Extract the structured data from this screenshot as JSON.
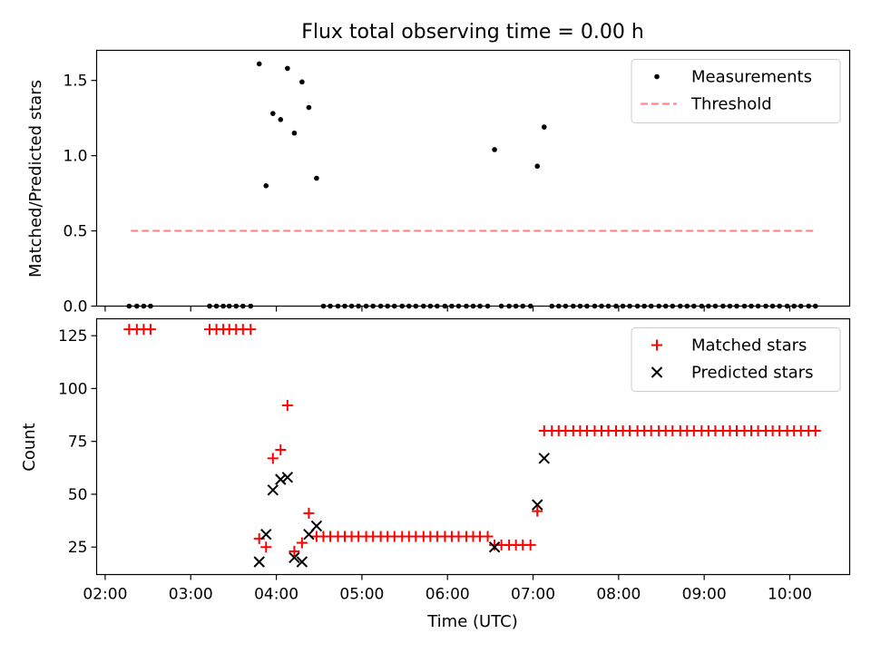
{
  "chart_data": [
    {
      "type": "scatter",
      "title": "Flux total observing time = 0.00 h",
      "xlabel": "",
      "ylabel": "Matched/Predicted stars",
      "xlim": [
        1.9,
        10.7
      ],
      "ylim": [
        0,
        1.7
      ],
      "yticks": [
        0.0,
        0.5,
        1.0,
        1.5
      ],
      "yticklabels": [
        "0.0",
        "0.5",
        "1.0",
        "1.5"
      ],
      "legend_position": "top-right",
      "series": [
        {
          "name": "Measurements",
          "marker": "dot",
          "color": "#000000",
          "points": [
            [
              2.28,
              0
            ],
            [
              2.37,
              0
            ],
            [
              2.45,
              0
            ],
            [
              2.53,
              0
            ],
            [
              3.22,
              0
            ],
            [
              3.3,
              0
            ],
            [
              3.38,
              0
            ],
            [
              3.45,
              0
            ],
            [
              3.53,
              0
            ],
            [
              3.61,
              0
            ],
            [
              3.7,
              0
            ],
            [
              3.8,
              1.61
            ],
            [
              3.88,
              0.8
            ],
            [
              3.96,
              1.28
            ],
            [
              4.05,
              1.24
            ],
            [
              4.13,
              1.58
            ],
            [
              4.21,
              1.15
            ],
            [
              4.3,
              1.49
            ],
            [
              4.38,
              1.32
            ],
            [
              4.47,
              0.85
            ],
            [
              4.55,
              0
            ],
            [
              4.63,
              0
            ],
            [
              4.72,
              0
            ],
            [
              4.8,
              0
            ],
            [
              4.88,
              0
            ],
            [
              4.96,
              0
            ],
            [
              5.05,
              0
            ],
            [
              5.13,
              0
            ],
            [
              5.22,
              0
            ],
            [
              5.3,
              0
            ],
            [
              5.38,
              0
            ],
            [
              5.47,
              0
            ],
            [
              5.55,
              0
            ],
            [
              5.63,
              0
            ],
            [
              5.72,
              0
            ],
            [
              5.8,
              0
            ],
            [
              5.88,
              0
            ],
            [
              5.97,
              0
            ],
            [
              6.05,
              0
            ],
            [
              6.13,
              0
            ],
            [
              6.22,
              0
            ],
            [
              6.3,
              0
            ],
            [
              6.38,
              0
            ],
            [
              6.47,
              0
            ],
            [
              6.55,
              1.04
            ],
            [
              6.63,
              0
            ],
            [
              6.72,
              0
            ],
            [
              6.8,
              0
            ],
            [
              6.88,
              0
            ],
            [
              6.97,
              0
            ],
            [
              7.05,
              0.93
            ],
            [
              7.13,
              1.19
            ],
            [
              7.22,
              0
            ],
            [
              7.3,
              0
            ],
            [
              7.38,
              0
            ],
            [
              7.47,
              0
            ],
            [
              7.55,
              0
            ],
            [
              7.63,
              0
            ],
            [
              7.72,
              0
            ],
            [
              7.8,
              0
            ],
            [
              7.88,
              0
            ],
            [
              7.97,
              0
            ],
            [
              8.05,
              0
            ],
            [
              8.13,
              0
            ],
            [
              8.22,
              0
            ],
            [
              8.3,
              0
            ],
            [
              8.38,
              0
            ],
            [
              8.47,
              0
            ],
            [
              8.55,
              0
            ],
            [
              8.63,
              0
            ],
            [
              8.72,
              0
            ],
            [
              8.8,
              0
            ],
            [
              8.88,
              0
            ],
            [
              8.97,
              0
            ],
            [
              9.05,
              0
            ],
            [
              9.13,
              0
            ],
            [
              9.22,
              0
            ],
            [
              9.3,
              0
            ],
            [
              9.38,
              0
            ],
            [
              9.47,
              0
            ],
            [
              9.55,
              0
            ],
            [
              9.63,
              0
            ],
            [
              9.72,
              0
            ],
            [
              9.8,
              0
            ],
            [
              9.88,
              0
            ],
            [
              9.97,
              0
            ],
            [
              10.05,
              0
            ],
            [
              10.13,
              0
            ],
            [
              10.22,
              0
            ],
            [
              10.3,
              0
            ]
          ]
        },
        {
          "name": "Threshold",
          "type": "line",
          "style": "dashed",
          "color": "#ff7f7f",
          "points": [
            [
              2.3,
              0.5
            ],
            [
              10.3,
              0.5
            ]
          ]
        }
      ]
    },
    {
      "type": "scatter",
      "title": "",
      "xlabel": "Time (UTC)",
      "ylabel": "Count",
      "xlim": [
        1.9,
        10.7
      ],
      "ylim": [
        12,
        133
      ],
      "xticks": [
        2,
        3,
        4,
        5,
        6,
        7,
        8,
        9,
        10
      ],
      "xticklabels": [
        "02:00",
        "03:00",
        "04:00",
        "05:00",
        "06:00",
        "07:00",
        "08:00",
        "09:00",
        "10:00"
      ],
      "yticks": [
        25,
        50,
        75,
        100,
        125
      ],
      "yticklabels": [
        "25",
        "50",
        "75",
        "100",
        "125"
      ],
      "legend_position": "top-right",
      "series": [
        {
          "name": "Matched stars",
          "marker": "plus",
          "color": "#ff0000",
          "points": [
            [
              2.28,
              128
            ],
            [
              2.37,
              128
            ],
            [
              2.45,
              128
            ],
            [
              2.53,
              128
            ],
            [
              3.22,
              128
            ],
            [
              3.3,
              128
            ],
            [
              3.38,
              128
            ],
            [
              3.45,
              128
            ],
            [
              3.53,
              128
            ],
            [
              3.61,
              128
            ],
            [
              3.7,
              128
            ],
            [
              3.8,
              29
            ],
            [
              3.88,
              25
            ],
            [
              3.96,
              67
            ],
            [
              4.05,
              71
            ],
            [
              4.13,
              92
            ],
            [
              4.21,
              23
            ],
            [
              4.3,
              27
            ],
            [
              4.38,
              41
            ],
            [
              4.47,
              30
            ],
            [
              4.55,
              30
            ],
            [
              4.63,
              30
            ],
            [
              4.72,
              30
            ],
            [
              4.8,
              30
            ],
            [
              4.88,
              30
            ],
            [
              4.96,
              30
            ],
            [
              5.05,
              30
            ],
            [
              5.13,
              30
            ],
            [
              5.22,
              30
            ],
            [
              5.3,
              30
            ],
            [
              5.38,
              30
            ],
            [
              5.47,
              30
            ],
            [
              5.55,
              30
            ],
            [
              5.63,
              30
            ],
            [
              5.72,
              30
            ],
            [
              5.8,
              30
            ],
            [
              5.88,
              30
            ],
            [
              5.97,
              30
            ],
            [
              6.05,
              30
            ],
            [
              6.13,
              30
            ],
            [
              6.22,
              30
            ],
            [
              6.3,
              30
            ],
            [
              6.38,
              30
            ],
            [
              6.47,
              30
            ],
            [
              6.55,
              26
            ],
            [
              6.63,
              26
            ],
            [
              6.72,
              26
            ],
            [
              6.8,
              26
            ],
            [
              6.88,
              26
            ],
            [
              6.97,
              26
            ],
            [
              7.05,
              42
            ],
            [
              7.13,
              80
            ],
            [
              7.22,
              80
            ],
            [
              7.3,
              80
            ],
            [
              7.38,
              80
            ],
            [
              7.47,
              80
            ],
            [
              7.55,
              80
            ],
            [
              7.63,
              80
            ],
            [
              7.72,
              80
            ],
            [
              7.8,
              80
            ],
            [
              7.88,
              80
            ],
            [
              7.97,
              80
            ],
            [
              8.05,
              80
            ],
            [
              8.13,
              80
            ],
            [
              8.22,
              80
            ],
            [
              8.3,
              80
            ],
            [
              8.38,
              80
            ],
            [
              8.47,
              80
            ],
            [
              8.55,
              80
            ],
            [
              8.63,
              80
            ],
            [
              8.72,
              80
            ],
            [
              8.8,
              80
            ],
            [
              8.88,
              80
            ],
            [
              8.97,
              80
            ],
            [
              9.05,
              80
            ],
            [
              9.13,
              80
            ],
            [
              9.22,
              80
            ],
            [
              9.3,
              80
            ],
            [
              9.38,
              80
            ],
            [
              9.47,
              80
            ],
            [
              9.55,
              80
            ],
            [
              9.63,
              80
            ],
            [
              9.72,
              80
            ],
            [
              9.8,
              80
            ],
            [
              9.88,
              80
            ],
            [
              9.97,
              80
            ],
            [
              10.05,
              80
            ],
            [
              10.13,
              80
            ],
            [
              10.22,
              80
            ],
            [
              10.3,
              80
            ]
          ]
        },
        {
          "name": "Predicted stars",
          "marker": "x",
          "color": "#000000",
          "points": [
            [
              3.8,
              18
            ],
            [
              3.88,
              31
            ],
            [
              3.96,
              52
            ],
            [
              4.05,
              57
            ],
            [
              4.13,
              58
            ],
            [
              4.21,
              20
            ],
            [
              4.3,
              18
            ],
            [
              4.38,
              31
            ],
            [
              4.47,
              35
            ],
            [
              6.55,
              25
            ],
            [
              7.05,
              45
            ],
            [
              7.13,
              67
            ]
          ]
        }
      ]
    }
  ]
}
